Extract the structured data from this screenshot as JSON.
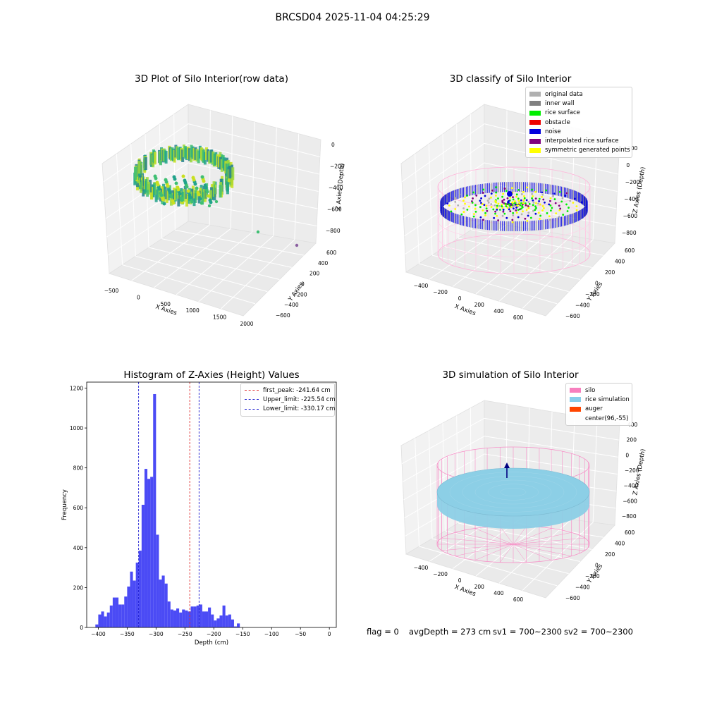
{
  "suptitle": "BRCSD04 2025-11-04 04:25:29",
  "colors": {
    "hist_bar": "#4b4bf5",
    "first_peak": "#e03030",
    "limits": "#2020d0",
    "silo": "#f78fc7",
    "rice_sim": "#8ccfe6",
    "pane": "#f2f2f2"
  },
  "chart_data": [
    {
      "type": "scatter",
      "title": "3D Plot of Silo Interior(row data)",
      "xlabel": "X Axies",
      "ylabel": "Y Axies",
      "zlabel": "Z Axies (Depth)",
      "x_ticks": [
        "−500",
        "0",
        "500",
        "1000",
        "1500",
        "2000"
      ],
      "y_ticks": [
        "−600",
        "−400",
        "−200",
        "0",
        "200",
        "400",
        "600"
      ],
      "z_ticks": [
        "0",
        "−200",
        "−400",
        "−600",
        "−800"
      ],
      "xlim": [
        -600,
        2000
      ],
      "ylim": [
        -650,
        650
      ],
      "zlim": [
        -900,
        50
      ]
    },
    {
      "type": "scatter",
      "title": "3D classify of Silo Interior",
      "xlabel": "X Axies",
      "ylabel": "Y Axies",
      "zlabel": "Z Axies (Depth)",
      "x_ticks": [
        "−400",
        "−200",
        "0",
        "200",
        "400",
        "600"
      ],
      "y_ticks": [
        "−600",
        "−400",
        "−200",
        "0",
        "200",
        "400",
        "600"
      ],
      "z_ticks": [
        "200",
        "0",
        "−200",
        "−400",
        "−600",
        "−800"
      ],
      "legend": [
        {
          "label": "original data",
          "color": "#b0b0b0"
        },
        {
          "label": "inner wall",
          "color": "#808080"
        },
        {
          "label": "rice surface",
          "color": "#00ee00"
        },
        {
          "label": "obstacle",
          "color": "#ee0000"
        },
        {
          "label": "noise",
          "color": "#0000dd"
        },
        {
          "label": "interpolated rice surface",
          "color": "#800080"
        },
        {
          "label": "symmetric generated points",
          "color": "#ffff00"
        }
      ]
    },
    {
      "type": "bar",
      "title": "Histogram of Z-Axies (Height) Values",
      "xlabel": "Depth (cm)",
      "ylabel": "Frequency",
      "xlim": [
        -420,
        12
      ],
      "ylim": [
        0,
        1230
      ],
      "x_ticks": [
        -400,
        -350,
        -300,
        -250,
        -200,
        -150,
        -100,
        -50,
        0
      ],
      "y_ticks": [
        0,
        200,
        400,
        600,
        800,
        1000,
        1200
      ],
      "bin_start": -405,
      "bin_width": 5,
      "values": [
        15,
        65,
        80,
        55,
        75,
        110,
        150,
        150,
        115,
        115,
        155,
        205,
        280,
        235,
        325,
        385,
        615,
        795,
        745,
        755,
        1170,
        465,
        240,
        260,
        220,
        130,
        90,
        85,
        95,
        75,
        90,
        85,
        80,
        105,
        105,
        110,
        115,
        80,
        80,
        100,
        65,
        35,
        45,
        60,
        110,
        60,
        65,
        40,
        5,
        20
      ],
      "lines": [
        {
          "label": "first_peak: -241.64 cm",
          "x": -241.64,
          "color": "#e03030"
        },
        {
          "label": "Upper_limit: -225.54 cm",
          "x": -225.54,
          "color": "#2020d0"
        },
        {
          "label": "Lower_limit: -330.17 cm",
          "x": -330.17,
          "color": "#2020d0"
        }
      ]
    },
    {
      "type": "scatter",
      "title": "3D simulation of Silo Interior",
      "xlabel": "X Axies",
      "ylabel": "Y Axies",
      "zlabel": "Z Axies (Depth)",
      "x_ticks": [
        "−400",
        "−200",
        "0",
        "200",
        "400",
        "600"
      ],
      "y_ticks": [
        "−600",
        "−400",
        "−200",
        "0",
        "200",
        "400",
        "600"
      ],
      "z_ticks": [
        "400",
        "200",
        "0",
        "−200",
        "−400",
        "−600",
        "−800"
      ],
      "legend": [
        {
          "label": "silo",
          "color": "#f77fbe"
        },
        {
          "label": "rice simulation",
          "color": "#87ceeb"
        },
        {
          "label": "auger",
          "color": "#ff4500"
        },
        {
          "label": "center(96,-55)",
          "color": ""
        }
      ]
    }
  ],
  "footer": {
    "flag": "flag = 0",
    "avg": "avgDepth = 273 cm",
    "sv1": "sv1 = 700~2300",
    "sv2": "sv2 = 700~2300"
  }
}
